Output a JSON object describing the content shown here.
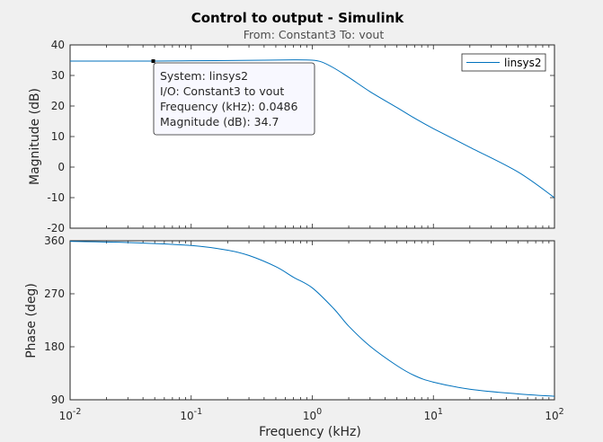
{
  "chart_data": {
    "type": "line",
    "title": "Control to output - Simulink",
    "subtitle": "From: Constant3  To: vout",
    "xlabel": "Frequency  (kHz)",
    "x_scale": "log",
    "xlim": [
      0.01,
      100
    ],
    "x_ticks": [
      {
        "base": "10",
        "exp": "-2"
      },
      {
        "base": "10",
        "exp": "-1"
      },
      {
        "base": "10",
        "exp": "0"
      },
      {
        "base": "10",
        "exp": "1"
      },
      {
        "base": "10",
        "exp": "2"
      }
    ],
    "grid": false,
    "series_color": "#0072bd",
    "legend": {
      "entries": [
        "linsys2"
      ],
      "placement": "top-right"
    },
    "subplots": [
      {
        "ylabel": "Magnitude (dB)",
        "ylim": [
          -20,
          40
        ],
        "yticks": [
          "40",
          "30",
          "20",
          "10",
          "0",
          "-10",
          "-20"
        ],
        "series": [
          {
            "name": "linsys2",
            "x": [
              0.01,
              0.02,
              0.0486,
              0.1,
              0.2,
              0.4,
              0.7,
              1.0,
              1.2,
              1.5,
              2,
              3,
              5,
              7,
              10,
              20,
              50,
              100
            ],
            "y": [
              34.7,
              34.7,
              34.7,
              34.8,
              34.9,
              35.0,
              35.1,
              35.0,
              34.4,
              32.5,
              29.4,
              24.7,
              19.5,
              16.0,
              12.6,
              6.5,
              -1.6,
              -10.0
            ]
          }
        ]
      },
      {
        "ylabel": "Phase (deg)",
        "ylim": [
          90,
          360
        ],
        "yticks": [
          "360",
          "270",
          "180",
          "90"
        ],
        "series": [
          {
            "name": "linsys2",
            "x": [
              0.01,
              0.03,
              0.1,
              0.2,
              0.3,
              0.5,
              0.7,
              1.0,
              1.5,
              2,
              3,
              5,
              7,
              10,
              20,
              50,
              100
            ],
            "y": [
              359,
              357,
              352,
              344,
              335,
              316,
              298,
              280,
              245,
              215,
              181,
              148,
              131,
              120,
              108,
              100,
              96
            ]
          }
        ]
      }
    ],
    "datatip": {
      "x": 0.0486,
      "y": 34.7,
      "lines": [
        "System: linsys2",
        "I/O: Constant3 to vout",
        "Frequency (kHz): 0.0486",
        "Magnitude (dB): 34.7"
      ]
    }
  }
}
